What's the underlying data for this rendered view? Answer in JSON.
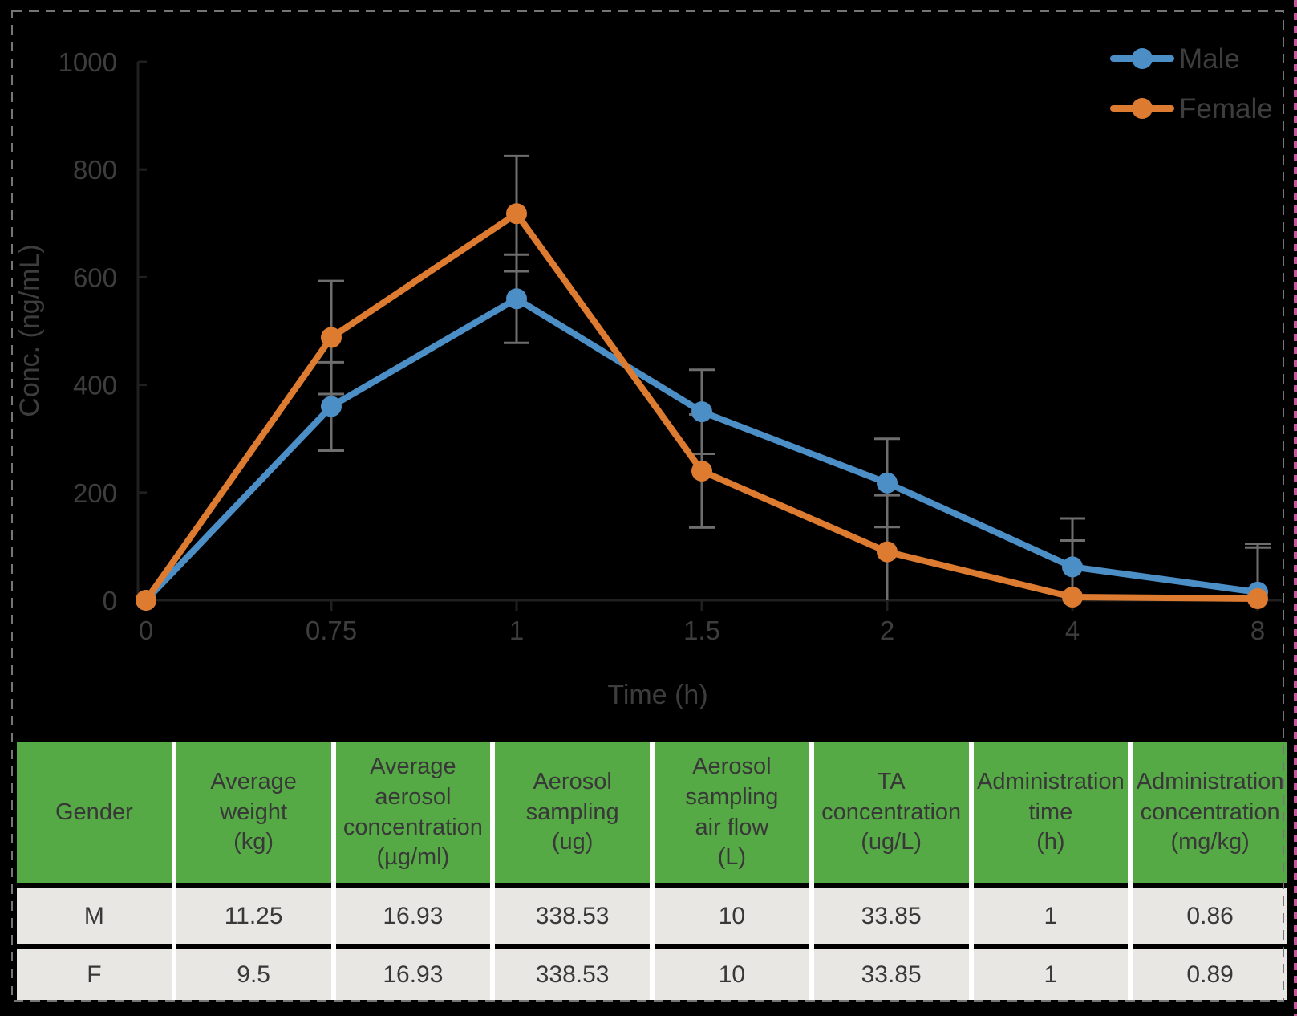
{
  "chart_data": {
    "type": "line",
    "title": "",
    "xlabel": "Time (h)",
    "ylabel": "Conc. (ng/mL)",
    "categories": [
      "0",
      "0.75",
      "1",
      "1.5",
      "2",
      "4",
      "8"
    ],
    "y_ticks": [
      0,
      200,
      400,
      600,
      800,
      1000
    ],
    "ylim": [
      0,
      1000
    ],
    "grid": false,
    "legend_position": "top-right",
    "error_bar_color": "#6E6E6E",
    "axis_color": "#202020",
    "label_color": "#3D3D3D",
    "series": [
      {
        "name": "Male",
        "color": "#4C8EC6",
        "values": [
          0,
          360,
          560,
          350,
          218,
          62,
          15
        ],
        "errors": [
          0,
          82,
          82,
          78,
          82,
          90,
          90
        ]
      },
      {
        "name": "Female",
        "color": "#DD7B31",
        "values": [
          0,
          488,
          718,
          240,
          90,
          6,
          3
        ],
        "errors": [
          0,
          105,
          107,
          105,
          105,
          105,
          95
        ]
      }
    ]
  },
  "table": {
    "header_bg": "#56AA45",
    "row_bg": "#E8E7E4",
    "columns": [
      "Gender",
      "Average\nweight\n(kg)",
      "Average\naerosol\nconcentration\n(µg/ml)",
      "Aerosol\nsampling\n(ug)",
      "Aerosol\nsampling\nair flow\n(L)",
      "TA\nconcentration\n(ug/L)",
      "Administration\ntime\n(h)",
      "Administration\nconcentration\n(mg/kg)"
    ],
    "rows": [
      [
        "M",
        "11.25",
        "16.93",
        "338.53",
        "10",
        "33.85",
        "1",
        "0.86"
      ],
      [
        "F",
        "9.5",
        "16.93",
        "338.53",
        "10",
        "33.85",
        "1",
        "0.89"
      ]
    ]
  },
  "frame": {
    "dashed_border_color": "#757575",
    "magenta_edge_color": "#C4569C"
  }
}
